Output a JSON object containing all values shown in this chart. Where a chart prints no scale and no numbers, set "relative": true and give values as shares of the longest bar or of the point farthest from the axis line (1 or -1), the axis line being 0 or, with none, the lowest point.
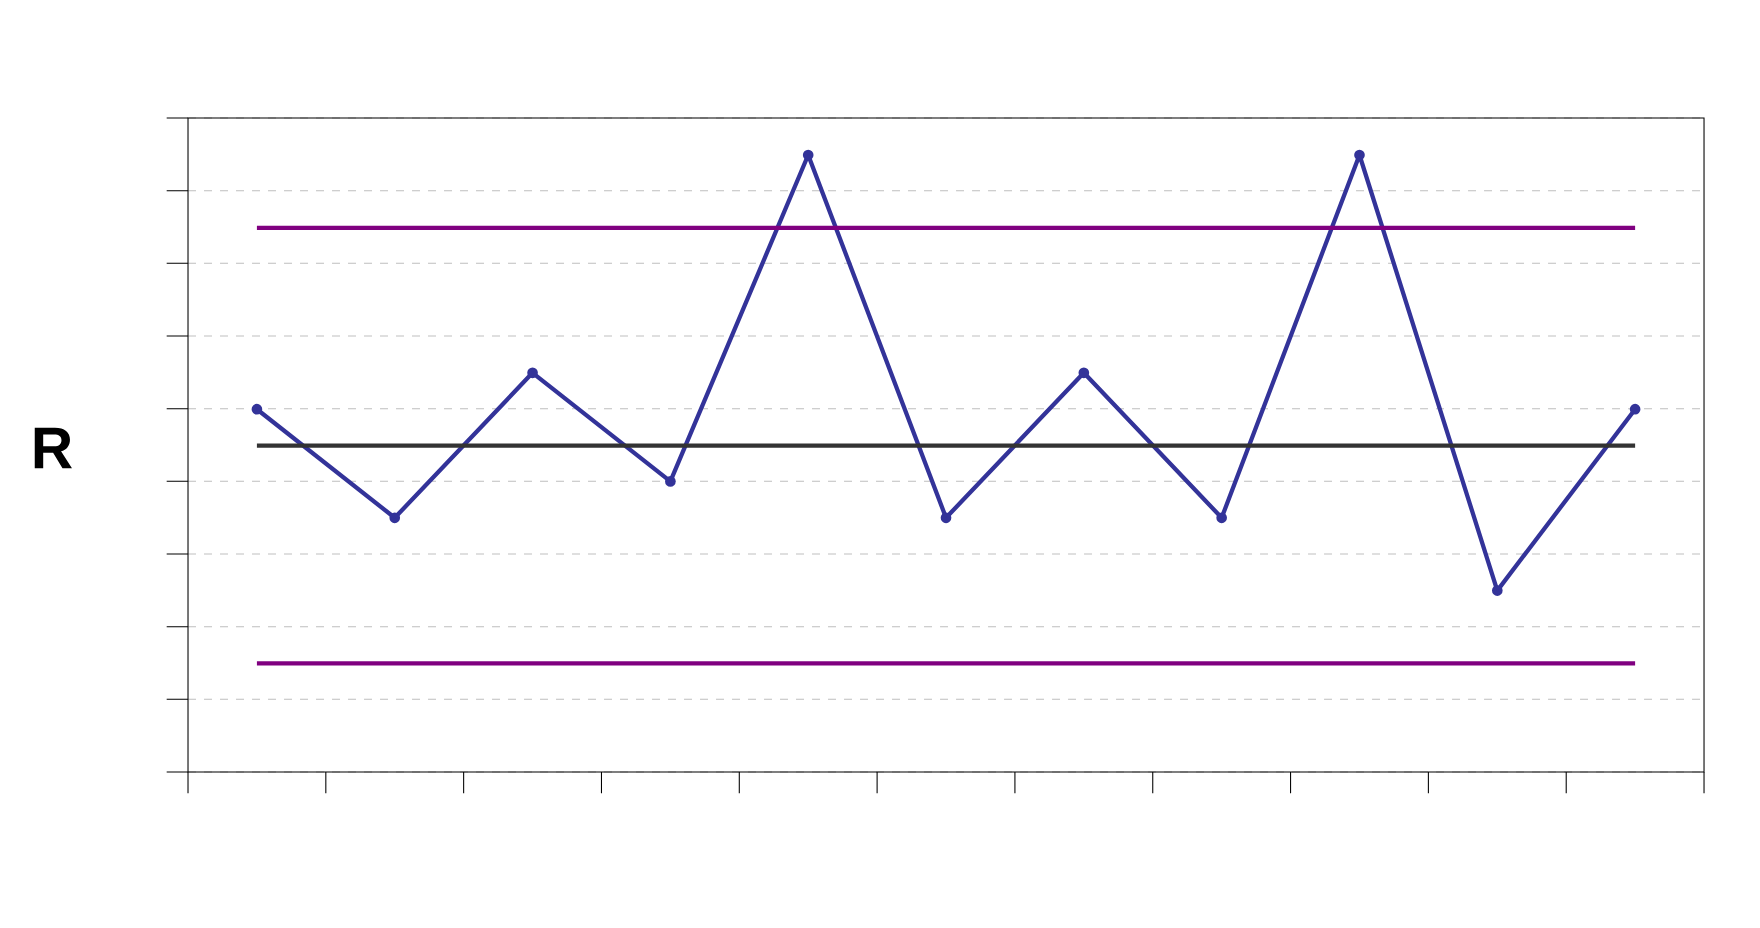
{
  "chart_data": {
    "type": "line",
    "relative": true,
    "ylabel": "R",
    "categories": [
      null,
      null,
      null,
      null,
      null,
      null,
      null,
      null,
      null,
      null,
      null
    ],
    "grid": "y",
    "series": [
      {
        "color": "#333399",
        "marker": "circle",
        "values": [
          0.588,
          0.412,
          0.647,
          0.471,
          1,
          0.412,
          0.647,
          0.412,
          1,
          0.294,
          0.588
        ]
      },
      {
        "color": "#800080",
        "values": [
          0.882,
          0.882,
          0.882,
          0.882,
          0.882,
          0.882,
          0.882,
          0.882,
          0.882,
          0.882,
          0.882
        ]
      },
      {
        "color": "#333333",
        "values": [
          0.529,
          0.529,
          0.529,
          0.529,
          0.529,
          0.529,
          0.529,
          0.529,
          0.529,
          0.529,
          0.529
        ]
      },
      {
        "color": "#800080",
        "values": [
          0.176,
          0.176,
          0.176,
          0.176,
          0.176,
          0.176,
          0.176,
          0.176,
          0.176,
          0.176,
          0.176
        ]
      }
    ]
  }
}
